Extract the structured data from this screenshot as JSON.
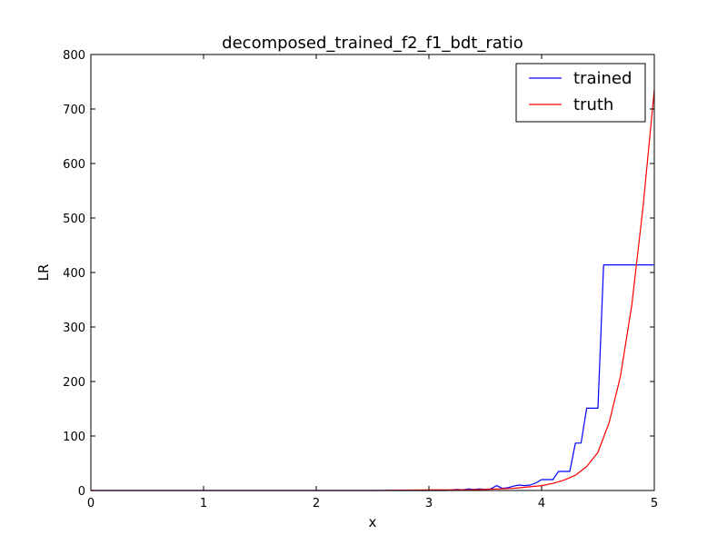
{
  "chart_data": {
    "type": "line",
    "title": "decomposed_trained_f2_f1_bdt_ratio",
    "xlabel": "x",
    "ylabel": "LR",
    "xlim": [
      0,
      5
    ],
    "ylim": [
      0,
      800
    ],
    "xticks": [
      "0",
      "1",
      "2",
      "3",
      "4",
      "5"
    ],
    "yticks": [
      "0",
      "100",
      "200",
      "300",
      "400",
      "500",
      "600",
      "700",
      "800"
    ],
    "grid": false,
    "legend_position": "top-right",
    "series": [
      {
        "name": "trained",
        "color": "#0000ff",
        "x": [
          0,
          3.0,
          3.15,
          3.25,
          3.3,
          3.35,
          3.4,
          3.45,
          3.5,
          3.55,
          3.6,
          3.65,
          3.7,
          3.75,
          3.8,
          3.85,
          3.9,
          3.95,
          4.0,
          4.1,
          4.15,
          4.2,
          4.25,
          4.3,
          4.35,
          4.4,
          4.45,
          4.5,
          4.55,
          5.0
        ],
        "y": [
          0,
          0,
          0,
          2,
          1,
          3,
          2,
          3,
          2,
          3,
          9,
          4,
          5,
          8,
          10,
          9,
          10,
          14,
          20,
          20,
          35,
          35,
          35,
          87,
          87,
          151,
          151,
          151,
          414,
          414
        ]
      },
      {
        "name": "truth",
        "color": "#ff0000",
        "x": [
          0,
          2.5,
          3.0,
          3.25,
          3.5,
          3.75,
          4.0,
          4.1,
          4.2,
          4.3,
          4.4,
          4.5,
          4.6,
          4.7,
          4.8,
          4.9,
          5.0
        ],
        "y": [
          0,
          0,
          1,
          1,
          2,
          4,
          9,
          13,
          19,
          28,
          44,
          70,
          125,
          210,
          340,
          520,
          735
        ]
      }
    ]
  }
}
